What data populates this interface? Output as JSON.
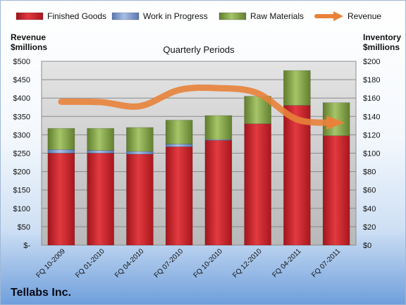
{
  "company": "Tellabs Inc.",
  "chart_data": {
    "type": "bar",
    "stacked": true,
    "title": "Quarterly Periods",
    "y_left_label": [
      "Revenue",
      "$millions"
    ],
    "y_right_label": [
      "Inventory",
      "$millions"
    ],
    "categories": [
      "FQ 10-2009",
      "FQ 01-2010",
      "FQ 04-2010",
      "FQ 07-2010",
      "FQ 10-2010",
      "FQ 12-2010",
      "FQ 04-2011",
      "FQ 07-2011"
    ],
    "series": [
      {
        "name": "Finished Goods",
        "axis": "right",
        "color": "#c8222a",
        "values": [
          100,
          100,
          99,
          107,
          114,
          132,
          152,
          119
        ]
      },
      {
        "name": "Work in Progress",
        "axis": "right",
        "color": "#7b96c8",
        "values": [
          4,
          3,
          3,
          3,
          1,
          0,
          0,
          0
        ]
      },
      {
        "name": "Raw Materials",
        "axis": "right",
        "color": "#86a84a",
        "values": [
          23,
          24,
          26,
          26,
          26,
          30,
          38,
          36
        ]
      }
    ],
    "line": {
      "name": "Revenue",
      "axis": "left",
      "color": "#e8823a",
      "values": [
        390,
        389,
        378,
        422,
        427,
        413,
        342,
        333
      ]
    },
    "y_left": {
      "min": 0,
      "max": 500,
      "step": 50,
      "tick_labels": [
        "$-",
        "$50",
        "$100",
        "$150",
        "$200",
        "$250",
        "$300",
        "$350",
        "$400",
        "$450",
        "$500"
      ]
    },
    "y_right": {
      "min": 0,
      "max": 200,
      "step": 20,
      "tick_labels": [
        "$0",
        "$20",
        "$40",
        "$60",
        "$80",
        "$100",
        "$120",
        "$140",
        "$160",
        "$180",
        "$200"
      ]
    },
    "legend_position": "top",
    "grid": true
  }
}
